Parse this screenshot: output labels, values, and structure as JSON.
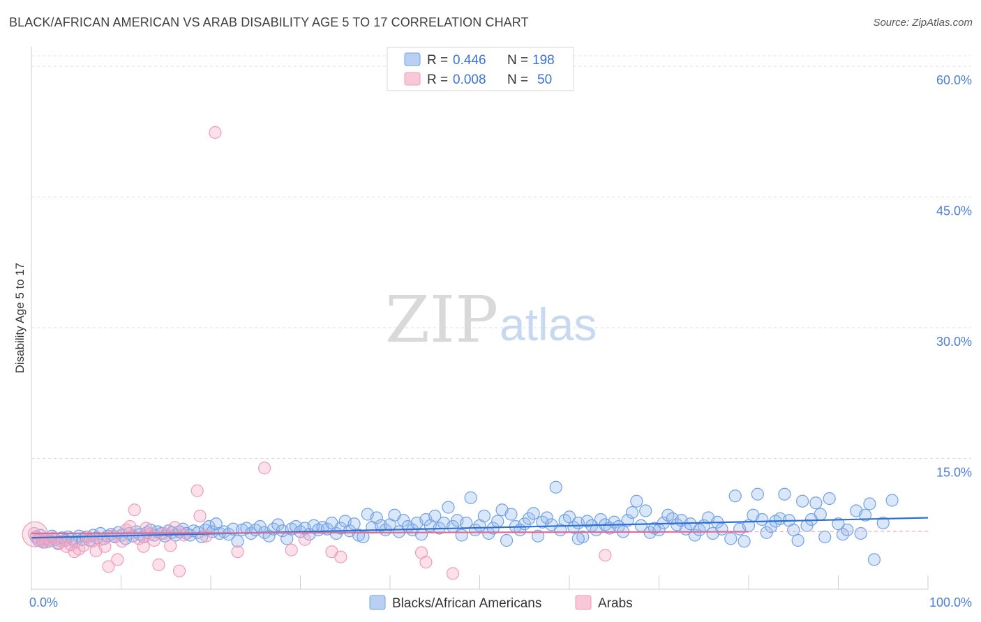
{
  "chart_data": {
    "type": "scatter",
    "title": "BLACK/AFRICAN AMERICAN VS ARAB DISABILITY AGE 5 TO 17 CORRELATION CHART",
    "source": "Source: ZipAtlas.com",
    "ylabel": "Disability Age 5 to 17",
    "xlabel": "",
    "xlim": [
      0,
      100
    ],
    "ylim": [
      0,
      62
    ],
    "x_tick_labels": [
      "0.0%",
      "100.0%"
    ],
    "y_ticks": [
      15,
      30,
      45,
      60
    ],
    "y_tick_labels": [
      "15.0%",
      "30.0%",
      "45.0%",
      "60.0%"
    ],
    "grid": true,
    "watermark": {
      "zip": "ZIP",
      "atlas": "atlas"
    },
    "legend_stats": [
      {
        "r_label": "R =",
        "r_value": "0.446",
        "n_label": "N =",
        "n_value": "198",
        "color": "#6fa0e8",
        "fill": "#b9d0f3"
      },
      {
        "r_label": "R =",
        "r_value": "0.008",
        "n_label": "N =",
        "n_value": "50",
        "color": "#f09ab8",
        "fill": "#f8c8d8"
      }
    ],
    "series": [
      {
        "name": "Blacks/African Americans",
        "color": "#6fa0e8",
        "fill": "rgba(150,185,235,0.35)",
        "trend": {
          "x": [
            0,
            100
          ],
          "y": [
            5.9,
            8.2
          ],
          "color": "#2f6fd0"
        },
        "points": [
          [
            0.5,
            6.0
          ],
          [
            0.8,
            5.6
          ],
          [
            1.0,
            6.2
          ],
          [
            1.3,
            5.4
          ],
          [
            1.6,
            5.8
          ],
          [
            2.0,
            5.5
          ],
          [
            2.3,
            6.1
          ],
          [
            2.7,
            5.7
          ],
          [
            3.0,
            5.3
          ],
          [
            3.4,
            5.9
          ],
          [
            3.8,
            5.6
          ],
          [
            4.1,
            6.0
          ],
          [
            4.5,
            5.8
          ],
          [
            4.9,
            5.4
          ],
          [
            5.3,
            6.1
          ],
          [
            5.7,
            5.7
          ],
          [
            6.1,
            6.0
          ],
          [
            6.5,
            5.6
          ],
          [
            6.9,
            6.2
          ],
          [
            7.3,
            5.9
          ],
          [
            7.7,
            6.4
          ],
          [
            8.1,
            5.8
          ],
          [
            8.5,
            6.1
          ],
          [
            8.9,
            6.3
          ],
          [
            9.3,
            6.0
          ],
          [
            9.7,
            6.5
          ],
          [
            10.1,
            6.2
          ],
          [
            10.5,
            5.8
          ],
          [
            10.9,
            6.4
          ],
          [
            11.3,
            6.1
          ],
          [
            11.7,
            6.6
          ],
          [
            12.1,
            6.3
          ],
          [
            12.5,
            6.0
          ],
          [
            12.9,
            6.5
          ],
          [
            13.3,
            6.8
          ],
          [
            13.7,
            6.2
          ],
          [
            14.1,
            6.6
          ],
          [
            14.5,
            6.4
          ],
          [
            14.9,
            6.1
          ],
          [
            15.3,
            6.7
          ],
          [
            15.7,
            6.5
          ],
          [
            16.1,
            6.2
          ],
          [
            16.5,
            6.6
          ],
          [
            16.9,
            6.9
          ],
          [
            17.3,
            6.4
          ],
          [
            17.7,
            6.2
          ],
          [
            18.1,
            6.7
          ],
          [
            18.6,
            6.5
          ],
          [
            19.0,
            6.0
          ],
          [
            19.4,
            6.8
          ],
          [
            19.8,
            7.2
          ],
          [
            20.2,
            6.6
          ],
          [
            20.6,
            7.5
          ],
          [
            21.0,
            6.4
          ],
          [
            21.5,
            6.6
          ],
          [
            22.0,
            6.3
          ],
          [
            22.5,
            6.9
          ],
          [
            23.0,
            5.5
          ],
          [
            23.5,
            6.8
          ],
          [
            24.0,
            7.0
          ],
          [
            24.5,
            6.4
          ],
          [
            25.0,
            6.8
          ],
          [
            25.5,
            7.2
          ],
          [
            26.0,
            6.5
          ],
          [
            26.5,
            6.1
          ],
          [
            27.0,
            6.9
          ],
          [
            27.5,
            7.4
          ],
          [
            28.0,
            6.7
          ],
          [
            28.5,
            5.8
          ],
          [
            29.0,
            6.9
          ],
          [
            29.5,
            7.2
          ],
          [
            30.0,
            6.6
          ],
          [
            30.5,
            7.0
          ],
          [
            31.0,
            6.3
          ],
          [
            31.5,
            7.3
          ],
          [
            32.0,
            6.8
          ],
          [
            32.5,
            7.1
          ],
          [
            33.0,
            6.9
          ],
          [
            33.5,
            7.6
          ],
          [
            34.0,
            6.4
          ],
          [
            34.5,
            7.0
          ],
          [
            35.0,
            7.8
          ],
          [
            35.5,
            6.7
          ],
          [
            36.0,
            7.5
          ],
          [
            36.5,
            6.2
          ],
          [
            37.0,
            6.0
          ],
          [
            37.5,
            8.6
          ],
          [
            38.0,
            7.1
          ],
          [
            38.5,
            8.2
          ],
          [
            39.0,
            7.3
          ],
          [
            39.5,
            6.8
          ],
          [
            40.0,
            7.4
          ],
          [
            40.5,
            8.5
          ],
          [
            41.0,
            6.6
          ],
          [
            41.5,
            7.9
          ],
          [
            42.0,
            7.2
          ],
          [
            42.5,
            6.8
          ],
          [
            43.0,
            7.6
          ],
          [
            43.5,
            6.3
          ],
          [
            44.0,
            8.0
          ],
          [
            44.5,
            7.3
          ],
          [
            45.0,
            8.4
          ],
          [
            45.5,
            7.0
          ],
          [
            46.0,
            7.6
          ],
          [
            46.5,
            9.4
          ],
          [
            47.0,
            7.2
          ],
          [
            47.5,
            7.9
          ],
          [
            48.0,
            6.2
          ],
          [
            48.5,
            7.6
          ],
          [
            49.0,
            10.5
          ],
          [
            49.5,
            6.8
          ],
          [
            50.0,
            7.3
          ],
          [
            50.5,
            8.4
          ],
          [
            51.0,
            6.4
          ],
          [
            51.5,
            7.0
          ],
          [
            52.0,
            7.8
          ],
          [
            52.5,
            9.1
          ],
          [
            53.0,
            5.6
          ],
          [
            53.5,
            8.6
          ],
          [
            54.0,
            7.2
          ],
          [
            54.5,
            6.8
          ],
          [
            55.0,
            7.5
          ],
          [
            55.5,
            8.1
          ],
          [
            56.0,
            8.7
          ],
          [
            56.5,
            6.1
          ],
          [
            57.0,
            7.7
          ],
          [
            57.5,
            8.2
          ],
          [
            58.0,
            7.4
          ],
          [
            58.5,
            11.7
          ],
          [
            59.0,
            6.8
          ],
          [
            59.5,
            7.9
          ],
          [
            60.0,
            8.3
          ],
          [
            60.5,
            7.1
          ],
          [
            61.0,
            7.6
          ],
          [
            61.5,
            6.0
          ],
          [
            62.0,
            7.8
          ],
          [
            62.5,
            7.3
          ],
          [
            63.0,
            6.8
          ],
          [
            63.5,
            8.0
          ],
          [
            64.0,
            7.4
          ],
          [
            64.5,
            7.0
          ],
          [
            65.0,
            7.7
          ],
          [
            65.5,
            7.2
          ],
          [
            66.0,
            6.6
          ],
          [
            66.5,
            7.9
          ],
          [
            67.0,
            8.8
          ],
          [
            67.5,
            10.1
          ],
          [
            68.0,
            7.3
          ],
          [
            68.5,
            9.0
          ],
          [
            69.0,
            6.5
          ],
          [
            69.5,
            7.0
          ],
          [
            70.0,
            6.8
          ],
          [
            70.5,
            7.6
          ],
          [
            71.0,
            8.5
          ],
          [
            71.5,
            8.1
          ],
          [
            72.0,
            7.4
          ],
          [
            72.5,
            7.9
          ],
          [
            73.0,
            6.9
          ],
          [
            73.5,
            7.5
          ],
          [
            74.0,
            6.2
          ],
          [
            74.5,
            6.8
          ],
          [
            75.0,
            7.3
          ],
          [
            75.5,
            8.2
          ],
          [
            76.0,
            6.4
          ],
          [
            76.5,
            7.7
          ],
          [
            77.0,
            6.9
          ],
          [
            78.0,
            5.8
          ],
          [
            78.5,
            10.7
          ],
          [
            79.0,
            6.9
          ],
          [
            79.5,
            5.5
          ],
          [
            80.0,
            7.3
          ],
          [
            80.5,
            8.5
          ],
          [
            81.0,
            10.9
          ],
          [
            81.5,
            8.0
          ],
          [
            82.0,
            6.5
          ],
          [
            82.5,
            7.2
          ],
          [
            83.0,
            7.8
          ],
          [
            83.5,
            8.1
          ],
          [
            84.0,
            10.9
          ],
          [
            84.5,
            7.9
          ],
          [
            85.0,
            6.8
          ],
          [
            85.5,
            5.6
          ],
          [
            86.0,
            10.1
          ],
          [
            86.5,
            7.3
          ],
          [
            87.0,
            8.0
          ],
          [
            87.5,
            9.9
          ],
          [
            88.0,
            8.6
          ],
          [
            88.5,
            6.0
          ],
          [
            89.0,
            10.4
          ],
          [
            90.0,
            7.5
          ],
          [
            90.5,
            6.3
          ],
          [
            91.0,
            6.8
          ],
          [
            92.0,
            9.0
          ],
          [
            92.5,
            6.4
          ],
          [
            93.0,
            8.5
          ],
          [
            93.5,
            9.8
          ],
          [
            94.0,
            3.4
          ],
          [
            95.0,
            7.6
          ],
          [
            96.0,
            10.2
          ],
          [
            61.0,
            5.8
          ]
        ]
      },
      {
        "name": "Arabs",
        "color": "#f09ab8",
        "fill": "rgba(245,170,195,0.35)",
        "trend": {
          "x": [
            0,
            80
          ],
          "y": [
            6.4,
            6.6
          ],
          "color": "#e06b95"
        },
        "extension": {
          "x": [
            80,
            100
          ],
          "y": [
            6.6,
            6.65
          ]
        },
        "points": [
          [
            0.3,
            6.4
          ],
          [
            0.8,
            5.8
          ],
          [
            1.2,
            5.6
          ],
          [
            1.6,
            5.4
          ],
          [
            2.0,
            5.7
          ],
          [
            2.5,
            5.9
          ],
          [
            3.0,
            5.2
          ],
          [
            3.4,
            5.5
          ],
          [
            3.9,
            4.9
          ],
          [
            4.4,
            5.1
          ],
          [
            4.8,
            4.3
          ],
          [
            5.3,
            4.6
          ],
          [
            5.8,
            5.0
          ],
          [
            6.3,
            6.0
          ],
          [
            6.8,
            5.5
          ],
          [
            7.2,
            4.4
          ],
          [
            7.7,
            5.7
          ],
          [
            8.2,
            4.9
          ],
          [
            8.6,
            2.6
          ],
          [
            9.1,
            6.1
          ],
          [
            9.6,
            3.4
          ],
          [
            10.1,
            5.5
          ],
          [
            10.6,
            6.8
          ],
          [
            11.0,
            7.2
          ],
          [
            11.5,
            9.1
          ],
          [
            12.0,
            5.8
          ],
          [
            12.5,
            4.9
          ],
          [
            12.8,
            7.0
          ],
          [
            13.2,
            6.3
          ],
          [
            13.7,
            5.6
          ],
          [
            14.2,
            2.8
          ],
          [
            14.8,
            6.4
          ],
          [
            15.5,
            5.0
          ],
          [
            16.0,
            7.1
          ],
          [
            16.5,
            2.1
          ],
          [
            17.0,
            6.2
          ],
          [
            18.5,
            11.3
          ],
          [
            18.8,
            8.4
          ],
          [
            19.5,
            6.1
          ],
          [
            20.5,
            52.4
          ],
          [
            23.0,
            4.3
          ],
          [
            26.0,
            13.9
          ],
          [
            29.0,
            4.5
          ],
          [
            30.5,
            5.7
          ],
          [
            33.5,
            4.3
          ],
          [
            34.5,
            3.7
          ],
          [
            43.5,
            4.2
          ],
          [
            44.0,
            3.1
          ],
          [
            47.0,
            1.8
          ],
          [
            64.0,
            3.9
          ]
        ]
      }
    ]
  }
}
